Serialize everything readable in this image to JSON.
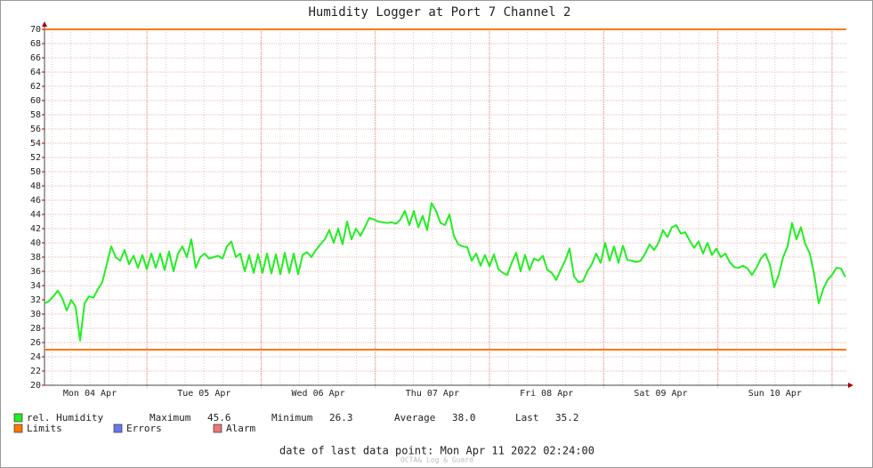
{
  "chart_data": {
    "type": "line",
    "title": "Humidity Logger at Port 7 Channel 2",
    "x_labels": [
      "Mon 04 Apr",
      "Tue 05 Apr",
      "Wed 06 Apr",
      "Thu 07 Apr",
      "Fri 08 Apr",
      "Sat 09 Apr",
      "Sun 10 Apr"
    ],
    "ylim": [
      20,
      70
    ],
    "yticks": [
      20,
      22,
      24,
      26,
      28,
      30,
      32,
      34,
      36,
      38,
      40,
      42,
      44,
      46,
      48,
      50,
      52,
      54,
      56,
      58,
      60,
      62,
      64,
      66,
      68,
      70
    ],
    "grid": true,
    "series": [
      {
        "name": "rel. Humidity",
        "color": "#22ee22",
        "values": [
          31.5,
          31.8,
          32.5,
          33.3,
          32.2,
          30.5,
          32.0,
          31.0,
          26.3,
          31.5,
          32.5,
          32.3,
          33.5,
          34.5,
          37,
          39.5,
          38,
          37.5,
          39,
          37,
          38.2,
          36.5,
          38.3,
          36.3,
          38.5,
          36.5,
          38.5,
          36.2,
          38.8,
          36,
          38.5,
          39.5,
          38,
          40.5,
          36.5,
          38,
          38.5,
          37.8,
          38,
          38.2,
          37.8,
          39.5,
          40.2,
          38,
          38.5,
          36,
          38.3,
          35.8,
          38.4,
          35.8,
          38.5,
          35.7,
          38.4,
          35.6,
          38.6,
          35.8,
          38.5,
          35.6,
          38.3,
          38.7,
          38,
          39,
          39.8,
          40.5,
          41.8,
          40,
          42,
          39.8,
          43,
          40.5,
          42,
          41,
          42.2,
          43.5,
          43.3,
          43,
          42.9,
          42.8,
          42.9,
          42.7,
          43.3,
          44.5,
          42.5,
          44.5,
          42.2,
          43.8,
          41.8,
          45.6,
          44.5,
          42.8,
          42.5,
          44,
          41,
          39.8,
          39.5,
          39.4,
          37.5,
          38.5,
          36.8,
          38.3,
          36.7,
          38.4,
          36.3,
          35.8,
          35.5,
          37.2,
          38.6,
          36,
          38.3,
          36.2,
          37.8,
          37.5,
          38.2,
          36.2,
          35.8,
          34.8,
          36.2,
          37.5,
          39.2,
          35.3,
          34.5,
          34.6,
          36,
          37,
          38.5,
          37.2,
          40,
          37.5,
          39.5,
          37.2,
          39.6,
          37.6,
          37.5,
          37.3,
          37.5,
          38.5,
          39.8,
          39,
          40,
          41.8,
          40.8,
          42.2,
          42.5,
          41.3,
          41.5,
          40.3,
          39.3,
          40.2,
          38.5,
          40,
          38.3,
          39.2,
          38,
          38.5,
          37.3,
          36.6,
          36.5,
          36.8,
          36.4,
          35.5,
          36.5,
          37.8,
          38.5,
          37,
          33.8,
          35.5,
          38,
          39.5,
          42.8,
          40.5,
          42.2,
          39.8,
          38.5,
          35.5,
          31.5,
          33.5,
          34.8,
          35.5,
          36.5,
          36.4,
          35.2
        ]
      }
    ],
    "limits": {
      "name": "Limits",
      "color": "#ff7700",
      "values": [
        70,
        25
      ]
    },
    "stats": [
      {
        "name": "Maximum",
        "value": "45.6"
      },
      {
        "name": "Minimum",
        "value": "26.3"
      },
      {
        "name": "Average",
        "value": "38.0"
      },
      {
        "name": "Last",
        "value": "35.2"
      }
    ],
    "legend_extra": [
      {
        "name": "Errors",
        "color": "#6677ee"
      },
      {
        "name": "Alarm",
        "color": "#ee7777"
      }
    ],
    "footer": "date of last data point:  Mon Apr 11 2022 02:24:00",
    "watermark": "OCTA& Log & Guard"
  }
}
